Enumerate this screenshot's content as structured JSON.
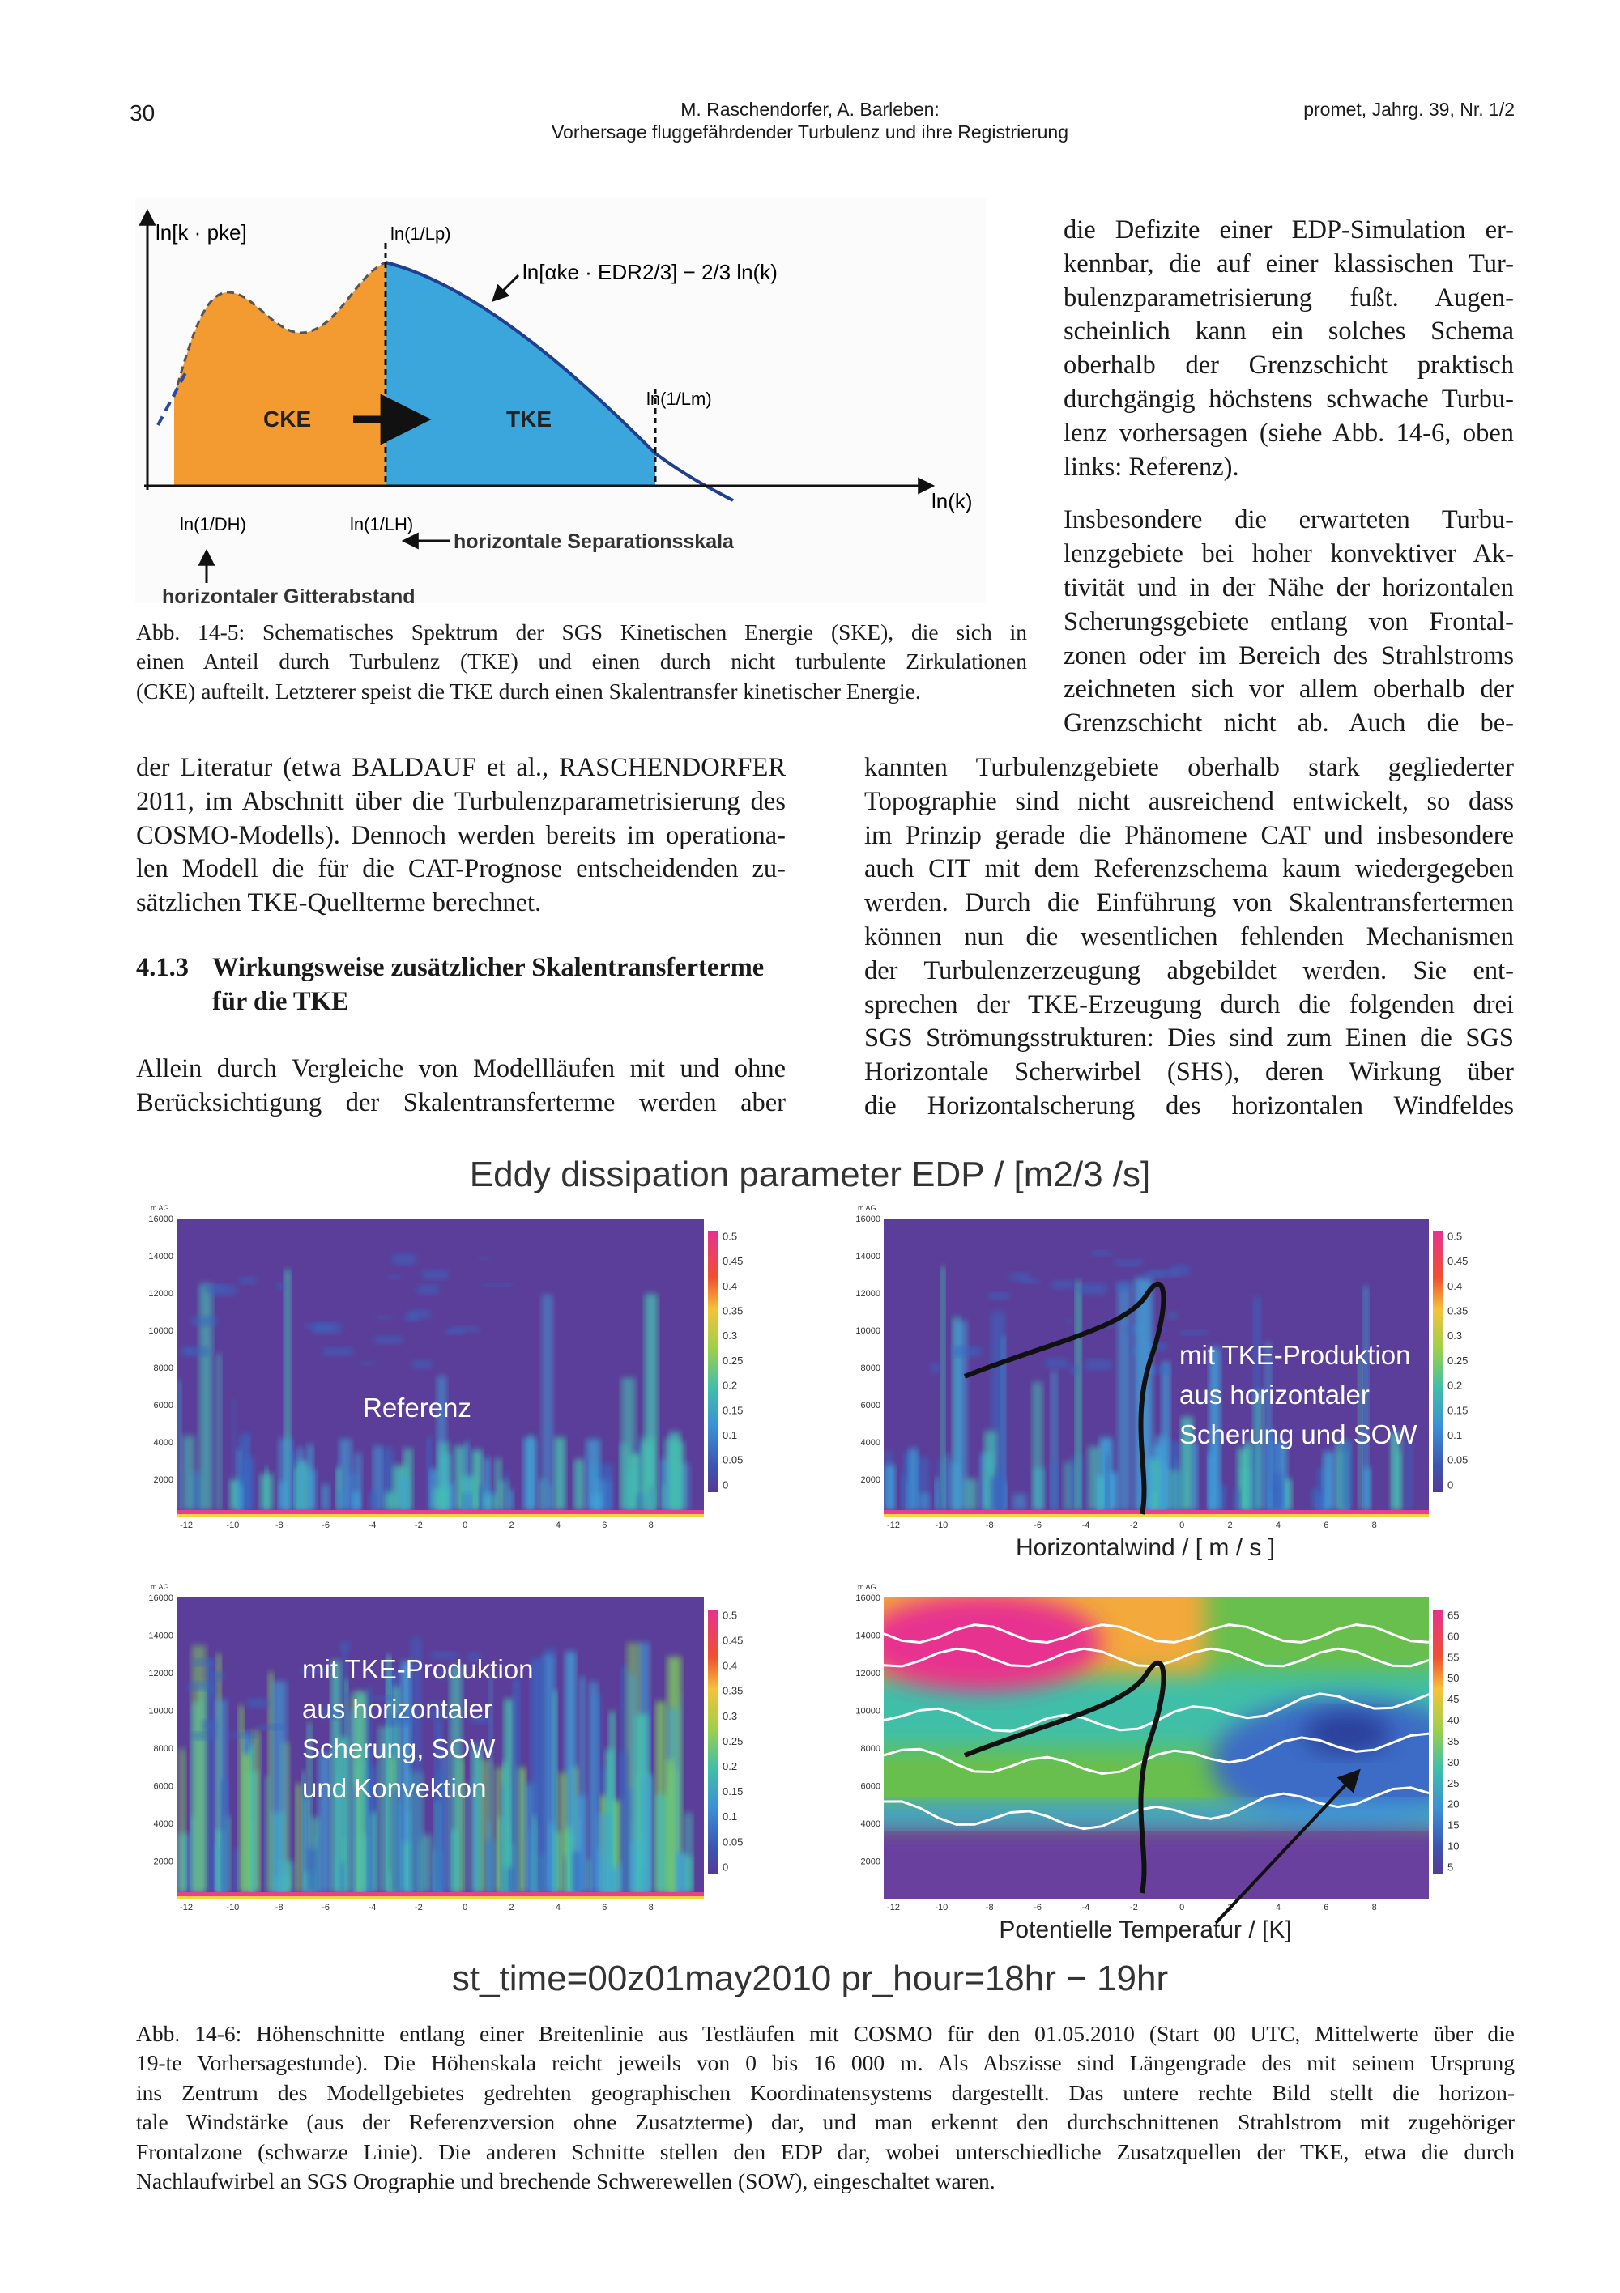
{
  "header": {
    "page_number": "30",
    "authors": "M. Raschendorfer, A. Barleben:",
    "title": "Vorhersage fluggefährdender Turbulenz und ihre Registrierung",
    "journal": "promet, Jahrg. 39, Nr. 1/2"
  },
  "figure_1": {
    "y_axis_label": "ln[k · pke]",
    "x_axis_label": "ln(k)",
    "lp_label": "ln(1/Lp)",
    "formula": "ln[αke · EDR2/3] − 2/3 ln(k)",
    "lm_label": "ln(1/Lm)",
    "cke_label": "CKE",
    "tke_label": "TKE",
    "dh_label": "ln(1/DH)",
    "lh_label": "ln(1/LH)",
    "separation_label": "horizontale Separationsskala",
    "grid_label": "horizontaler Gitterabstand",
    "caption": [
      "Abb. 14-5: Schematisches Spektrum der SGS Kinetischen Energie (SKE), die sich in",
      "einen Anteil durch Turbulenz (TKE) und einen durch nicht turbulente Zirkulationen",
      "(CKE) aufteilt. Letzterer speist die TKE durch einen Skalentransfer kinetischer Energie."
    ]
  },
  "text_blocks": [
    {
      "paragraphs": [
        [
          "die Defizite einer EDP-Simulation er-",
          "kennbar, die auf einer klassischen Tur-",
          "bulenzparametrisierung fußt. Augen-",
          "scheinlich kann ein solches Schema",
          "oberhalb der Grenzschicht praktisch",
          "durchgängig höchstens schwache Turbu-",
          "lenz vorhersagen (siehe Abb. 14-6, oben",
          "links: Referenz)."
        ],
        [
          "Insbesondere die erwarteten Turbu-",
          "lenzgebiete bei hoher konvektiver Ak-",
          "tivität und in der Nähe der horizontalen",
          "Scherungsgebiete entlang von Frontal-",
          "zonen oder im Bereich des Strahlstroms",
          "zeichneten sich vor allem oberhalb der",
          "Grenzschicht nicht ab. Auch die be-"
        ]
      ]
    },
    {
      "paragraphs": [
        [
          "kannten Turbulenzgebiete oberhalb stark gegliederter",
          "Topographie sind nicht ausreichend entwickelt, so dass",
          "im Prinzip gerade die Phänomene CAT und insbesondere",
          "auch CIT mit dem Referenzschema kaum wiedergegeben",
          "werden. Durch die Einführung von Skalentransfertermen",
          "können nun die wesentlichen fehlenden Mechanismen",
          "der Turbulenzerzeugung abgebildet werden. Sie ent-",
          "sprechen der TKE-Erzeugung durch die folgenden drei",
          "SGS Strömungsstrukturen: Dies sind zum Einen die SGS",
          "Horizontale Scherwirbel (SHS), deren Wirkung über",
          "die Horizontalscherung des horizontalen Windfeldes"
        ]
      ]
    },
    {
      "paragraphs": [
        [
          "der Literatur (etwa BALDAUF et al., RASCHENDORFER",
          "2011, im Abschnitt über die Turbulenzparametrisierung des",
          "COSMO-Modells). Dennoch werden bereits im operationa-",
          "len Modell die für die CAT-Prognose entscheidenden zu-",
          "sätzlichen TKE-Quellterme berechnet."
        ]
      ]
    },
    {
      "paragraphs": [
        [
          "Allein durch Vergleiche von Modellläufen mit und ohne",
          "Berücksichtigung der Skalentransferterme werden aber"
        ]
      ]
    }
  ],
  "section": {
    "number": "4.1.3",
    "title": [
      "Wirkungsweise zusätzlicher Skalentransferterme",
      "für die TKE"
    ]
  },
  "figure_2": {
    "title": "Eddy dissipation parameter EDP / [m2/3 /s]",
    "footer": "st_time=00z01may2010 pr_hour=18hr − 19hr",
    "y_unit": "m AG",
    "y_ticks": [
      16000,
      14000,
      12000,
      10000,
      8000,
      6000,
      4000,
      2000
    ],
    "x_ticks": [
      -12,
      -10,
      -8,
      -6,
      -4,
      -2,
      0,
      2,
      4,
      6,
      8
    ],
    "edp_scale": [
      0.5,
      0.45,
      0.4,
      0.35,
      0.3,
      0.25,
      0.2,
      0.15,
      0.1,
      0.05,
      0
    ],
    "wind_scale": [
      65,
      60,
      55,
      50,
      45,
      40,
      35,
      30,
      25,
      20,
      15,
      10,
      5
    ],
    "panels": [
      {
        "label": [
          "Referenz"
        ]
      },
      {
        "label": [
          "mit TKE-Produktion",
          "aus horizontaler",
          "Scherung und SOW"
        ],
        "axis_label": "Horizontalwind / [ m / s ]"
      },
      {
        "label": [
          "mit TKE-Produktion",
          "aus horizontaler",
          "Scherung, SOW",
          "und Konvektion"
        ]
      },
      {
        "label": [],
        "axis_label": "Potentielle Temperatur / [K]"
      }
    ],
    "caption": [
      "Abb. 14-6: Höhenschnitte entlang einer Breitenlinie aus Testläufen mit COSMO für den 01.05.2010 (Start 00 UTC, Mittelwerte über die",
      "19-te Vorhersagestunde). Die Höhenskala reicht jeweils von 0 bis 16 000 m. Als Abszisse sind Längengrade des mit seinem Ursprung",
      "ins Zentrum des Modellgebietes gedrehten geographischen Koordinatensystems dargestellt. Das untere rechte Bild stellt die horizon-",
      "tale Windstärke (aus der Referenzversion ohne Zusatzterme) dar, und man erkennt den durchschnittenen Strahlstrom mit zugehöriger",
      "Frontalzone (schwarze Linie). Die anderen Schnitte stellen den EDP dar, wobei unterschiedliche Zusatzquellen der TKE, etwa die durch",
      "Nachlaufwirbel an SGS Orographie und brechende Schwerewellen (SOW), eingeschaltet waren."
    ]
  }
}
